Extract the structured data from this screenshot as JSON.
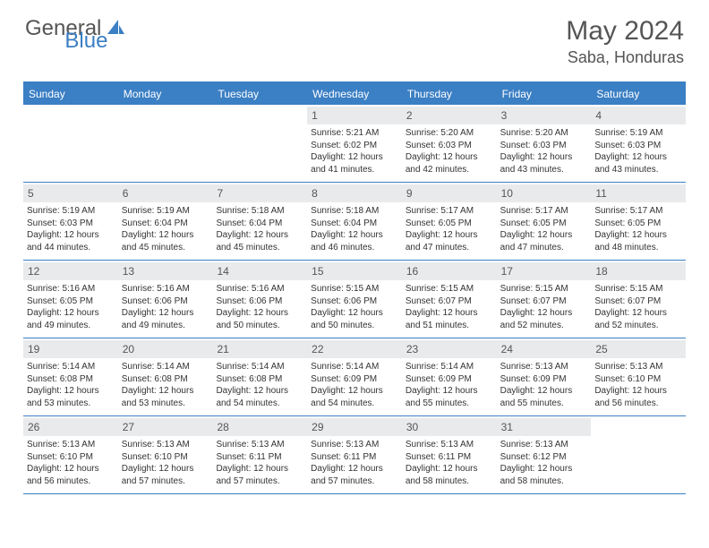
{
  "logo": {
    "text1": "General",
    "text2": "Blue"
  },
  "title": "May 2024",
  "location": "Saba, Honduras",
  "colors": {
    "brand_blue": "#3b7fc4",
    "header_text": "#555555",
    "daynum_bg": "#e9eaec",
    "body_text": "#333333",
    "background": "#ffffff"
  },
  "daysOfWeek": [
    "Sunday",
    "Monday",
    "Tuesday",
    "Wednesday",
    "Thursday",
    "Friday",
    "Saturday"
  ],
  "weeks": [
    [
      {
        "n": "",
        "sr": "",
        "ss": "",
        "dl": ""
      },
      {
        "n": "",
        "sr": "",
        "ss": "",
        "dl": ""
      },
      {
        "n": "",
        "sr": "",
        "ss": "",
        "dl": ""
      },
      {
        "n": "1",
        "sr": "5:21 AM",
        "ss": "6:02 PM",
        "dl": "12 hours and 41 minutes."
      },
      {
        "n": "2",
        "sr": "5:20 AM",
        "ss": "6:03 PM",
        "dl": "12 hours and 42 minutes."
      },
      {
        "n": "3",
        "sr": "5:20 AM",
        "ss": "6:03 PM",
        "dl": "12 hours and 43 minutes."
      },
      {
        "n": "4",
        "sr": "5:19 AM",
        "ss": "6:03 PM",
        "dl": "12 hours and 43 minutes."
      }
    ],
    [
      {
        "n": "5",
        "sr": "5:19 AM",
        "ss": "6:03 PM",
        "dl": "12 hours and 44 minutes."
      },
      {
        "n": "6",
        "sr": "5:19 AM",
        "ss": "6:04 PM",
        "dl": "12 hours and 45 minutes."
      },
      {
        "n": "7",
        "sr": "5:18 AM",
        "ss": "6:04 PM",
        "dl": "12 hours and 45 minutes."
      },
      {
        "n": "8",
        "sr": "5:18 AM",
        "ss": "6:04 PM",
        "dl": "12 hours and 46 minutes."
      },
      {
        "n": "9",
        "sr": "5:17 AM",
        "ss": "6:05 PM",
        "dl": "12 hours and 47 minutes."
      },
      {
        "n": "10",
        "sr": "5:17 AM",
        "ss": "6:05 PM",
        "dl": "12 hours and 47 minutes."
      },
      {
        "n": "11",
        "sr": "5:17 AM",
        "ss": "6:05 PM",
        "dl": "12 hours and 48 minutes."
      }
    ],
    [
      {
        "n": "12",
        "sr": "5:16 AM",
        "ss": "6:05 PM",
        "dl": "12 hours and 49 minutes."
      },
      {
        "n": "13",
        "sr": "5:16 AM",
        "ss": "6:06 PM",
        "dl": "12 hours and 49 minutes."
      },
      {
        "n": "14",
        "sr": "5:16 AM",
        "ss": "6:06 PM",
        "dl": "12 hours and 50 minutes."
      },
      {
        "n": "15",
        "sr": "5:15 AM",
        "ss": "6:06 PM",
        "dl": "12 hours and 50 minutes."
      },
      {
        "n": "16",
        "sr": "5:15 AM",
        "ss": "6:07 PM",
        "dl": "12 hours and 51 minutes."
      },
      {
        "n": "17",
        "sr": "5:15 AM",
        "ss": "6:07 PM",
        "dl": "12 hours and 52 minutes."
      },
      {
        "n": "18",
        "sr": "5:15 AM",
        "ss": "6:07 PM",
        "dl": "12 hours and 52 minutes."
      }
    ],
    [
      {
        "n": "19",
        "sr": "5:14 AM",
        "ss": "6:08 PM",
        "dl": "12 hours and 53 minutes."
      },
      {
        "n": "20",
        "sr": "5:14 AM",
        "ss": "6:08 PM",
        "dl": "12 hours and 53 minutes."
      },
      {
        "n": "21",
        "sr": "5:14 AM",
        "ss": "6:08 PM",
        "dl": "12 hours and 54 minutes."
      },
      {
        "n": "22",
        "sr": "5:14 AM",
        "ss": "6:09 PM",
        "dl": "12 hours and 54 minutes."
      },
      {
        "n": "23",
        "sr": "5:14 AM",
        "ss": "6:09 PM",
        "dl": "12 hours and 55 minutes."
      },
      {
        "n": "24",
        "sr": "5:13 AM",
        "ss": "6:09 PM",
        "dl": "12 hours and 55 minutes."
      },
      {
        "n": "25",
        "sr": "5:13 AM",
        "ss": "6:10 PM",
        "dl": "12 hours and 56 minutes."
      }
    ],
    [
      {
        "n": "26",
        "sr": "5:13 AM",
        "ss": "6:10 PM",
        "dl": "12 hours and 56 minutes."
      },
      {
        "n": "27",
        "sr": "5:13 AM",
        "ss": "6:10 PM",
        "dl": "12 hours and 57 minutes."
      },
      {
        "n": "28",
        "sr": "5:13 AM",
        "ss": "6:11 PM",
        "dl": "12 hours and 57 minutes."
      },
      {
        "n": "29",
        "sr": "5:13 AM",
        "ss": "6:11 PM",
        "dl": "12 hours and 57 minutes."
      },
      {
        "n": "30",
        "sr": "5:13 AM",
        "ss": "6:11 PM",
        "dl": "12 hours and 58 minutes."
      },
      {
        "n": "31",
        "sr": "5:13 AM",
        "ss": "6:12 PM",
        "dl": "12 hours and 58 minutes."
      },
      {
        "n": "",
        "sr": "",
        "ss": "",
        "dl": ""
      }
    ]
  ],
  "labels": {
    "sunrise": "Sunrise:",
    "sunset": "Sunset:",
    "daylight": "Daylight:"
  }
}
